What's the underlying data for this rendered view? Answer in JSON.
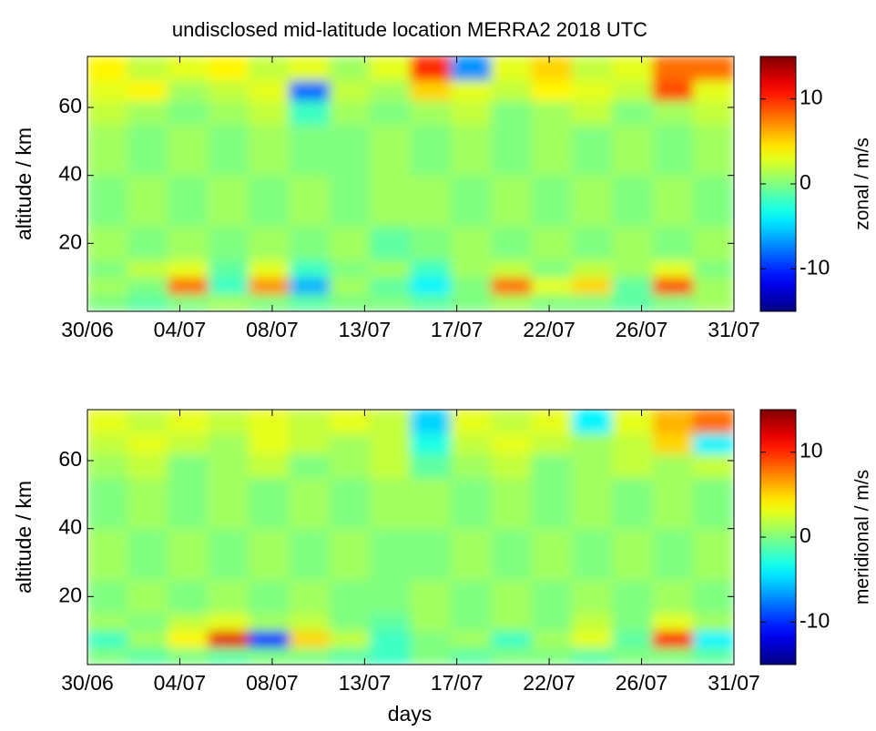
{
  "chart_data": [
    {
      "type": "heatmap",
      "title": "undisclosed mid-latitude location MERRA2 2018 UTC",
      "ylabel": "altitude / km",
      "colorbar_label": "zonal / m/s",
      "colormap": "jet",
      "xlim": [
        0,
        31
      ],
      "ylim": [
        0,
        75
      ],
      "clim": [
        -15,
        15
      ],
      "xticks": [
        {
          "value": 0,
          "label": "30/06"
        },
        {
          "value": 4.43,
          "label": "04/07"
        },
        {
          "value": 8.86,
          "label": "08/07"
        },
        {
          "value": 13.29,
          "label": "13/07"
        },
        {
          "value": 17.71,
          "label": "17/07"
        },
        {
          "value": 22.14,
          "label": "22/07"
        },
        {
          "value": 26.57,
          "label": "26/07"
        },
        {
          "value": 31,
          "label": "31/07"
        }
      ],
      "yticks": [
        20,
        40,
        60
      ],
      "cticks": [
        -10,
        0,
        10
      ],
      "x_edges": [
        0,
        1.9375,
        3.875,
        5.8125,
        7.75,
        9.6875,
        11.625,
        13.5625,
        15.5,
        17.4375,
        19.375,
        21.3125,
        23.25,
        25.1875,
        27.125,
        29.0625,
        31
      ],
      "y_edges": [
        0,
        5,
        10,
        15,
        25,
        40,
        55,
        62,
        68,
        75
      ],
      "z": [
        [
          0,
          -1,
          0,
          1,
          0,
          -1,
          0,
          0,
          -1,
          0,
          1,
          0,
          0,
          -1,
          0,
          1
        ],
        [
          1,
          0,
          8,
          -2,
          7,
          -6,
          1,
          -1,
          -4,
          0,
          8,
          3,
          5,
          -1,
          9,
          1
        ],
        [
          0,
          2,
          3,
          -1,
          3,
          -2,
          0,
          1,
          -2,
          1,
          2,
          0,
          2,
          1,
          3,
          0
        ],
        [
          1,
          0,
          1,
          0,
          1,
          0,
          1,
          -1,
          0,
          1,
          0,
          1,
          0,
          1,
          0,
          1
        ],
        [
          0,
          1,
          0,
          1,
          0,
          1,
          0,
          1,
          1,
          0,
          1,
          0,
          1,
          0,
          1,
          0
        ],
        [
          1,
          0,
          1,
          0,
          1,
          0,
          0,
          1,
          0,
          1,
          0,
          1,
          0,
          1,
          0,
          1
        ],
        [
          2,
          1,
          0,
          1,
          2,
          -2,
          1,
          0,
          1,
          2,
          0,
          1,
          2,
          0,
          1,
          2
        ],
        [
          3,
          4,
          1,
          2,
          3,
          -8,
          2,
          1,
          5,
          3,
          2,
          4,
          3,
          2,
          9,
          3
        ],
        [
          4,
          2,
          3,
          4,
          2,
          3,
          1,
          3,
          10,
          -7,
          3,
          5,
          2,
          3,
          8,
          8
        ]
      ]
    },
    {
      "type": "heatmap",
      "ylabel": "altitude / km",
      "xlabel": "days",
      "colorbar_label": "meridional / m/s",
      "colormap": "jet",
      "xlim": [
        0,
        31
      ],
      "ylim": [
        0,
        75
      ],
      "clim": [
        -15,
        15
      ],
      "xticks": [
        {
          "value": 0,
          "label": "30/06"
        },
        {
          "value": 4.43,
          "label": "04/07"
        },
        {
          "value": 8.86,
          "label": "08/07"
        },
        {
          "value": 13.29,
          "label": "13/07"
        },
        {
          "value": 17.71,
          "label": "17/07"
        },
        {
          "value": 22.14,
          "label": "22/07"
        },
        {
          "value": 26.57,
          "label": "26/07"
        },
        {
          "value": 31,
          "label": "31/07"
        }
      ],
      "yticks": [
        20,
        40,
        60
      ],
      "cticks": [
        -10,
        0,
        10
      ],
      "x_edges": [
        0,
        1.9375,
        3.875,
        5.8125,
        7.75,
        9.6875,
        11.625,
        13.5625,
        15.5,
        17.4375,
        19.375,
        21.3125,
        23.25,
        25.1875,
        27.125,
        29.0625,
        31
      ],
      "y_edges": [
        0,
        5,
        10,
        15,
        25,
        40,
        55,
        62,
        68,
        75
      ],
      "z": [
        [
          0,
          -1,
          0,
          -1,
          0,
          0,
          -1,
          -2,
          0,
          -1,
          0,
          0,
          -1,
          0,
          0,
          -1
        ],
        [
          -2,
          1,
          4,
          12,
          -10,
          5,
          2,
          -2,
          0,
          1,
          -2,
          1,
          3,
          -1,
          11,
          -4
        ],
        [
          1,
          0,
          2,
          3,
          1,
          2,
          0,
          -1,
          1,
          0,
          1,
          0,
          2,
          0,
          3,
          1
        ],
        [
          0,
          1,
          0,
          1,
          0,
          1,
          0,
          0,
          1,
          0,
          1,
          0,
          1,
          0,
          1,
          0
        ],
        [
          1,
          0,
          1,
          0,
          1,
          0,
          1,
          0,
          0,
          1,
          0,
          1,
          0,
          1,
          0,
          1
        ],
        [
          0,
          1,
          0,
          1,
          0,
          1,
          0,
          1,
          1,
          0,
          1,
          0,
          1,
          0,
          1,
          0
        ],
        [
          1,
          2,
          0,
          1,
          2,
          0,
          1,
          2,
          -1,
          1,
          2,
          0,
          1,
          2,
          1,
          2
        ],
        [
          2,
          3,
          2,
          1,
          3,
          2,
          1,
          2,
          -3,
          2,
          3,
          2,
          1,
          2,
          5,
          -4
        ],
        [
          3,
          2,
          3,
          2,
          3,
          2,
          3,
          2,
          -5,
          3,
          2,
          3,
          -4,
          3,
          6,
          8
        ]
      ]
    }
  ]
}
